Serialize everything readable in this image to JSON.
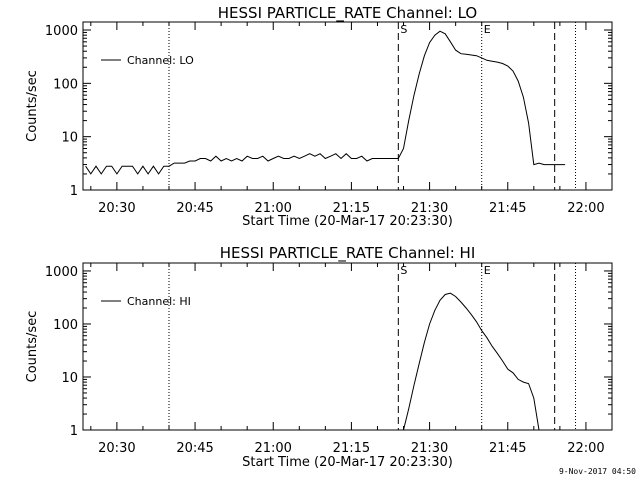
{
  "timestamp": "9-Nov-2017 04:50",
  "chart_data": [
    {
      "type": "line",
      "title": "HESSI PARTICLE_RATE Channel: LO",
      "xlabel": "Start Time (20-Mar-17 20:23:30)",
      "ylabel": "Counts/sec",
      "yscale": "log",
      "ylim": [
        1,
        1000
      ],
      "xlim": [
        "20:23:30",
        "22:05:00"
      ],
      "x_ticks": [
        "20:30",
        "20:45",
        "21:00",
        "21:15",
        "21:30",
        "21:45",
        "22:00"
      ],
      "y_ticks": [
        "1",
        "10",
        "100",
        "1000"
      ],
      "legend": {
        "label": "Channel: LO",
        "placement": "top-left"
      },
      "markers": [
        {
          "time": "21:24",
          "label": "S",
          "style": "dashed"
        },
        {
          "time": "21:40",
          "label": "E",
          "style": "dotted"
        }
      ],
      "vlines": [
        {
          "time": "20:40",
          "style": "dotted"
        },
        {
          "time": "21:54",
          "style": "dashed"
        },
        {
          "time": "21:58",
          "style": "dotted"
        }
      ],
      "series": [
        {
          "name": "Channel: LO",
          "x": [
            "20:24",
            "20:25",
            "20:26",
            "20:27",
            "20:28",
            "20:29",
            "20:30",
            "20:31",
            "20:32",
            "20:33",
            "20:34",
            "20:35",
            "20:36",
            "20:37",
            "20:38",
            "20:39",
            "20:40",
            "20:41",
            "20:42",
            "20:43",
            "20:44",
            "20:45",
            "20:46",
            "20:47",
            "20:48",
            "20:49",
            "20:50",
            "20:51",
            "20:52",
            "20:53",
            "20:54",
            "20:55",
            "20:56",
            "20:57",
            "20:58",
            "20:59",
            "21:00",
            "21:01",
            "21:02",
            "21:03",
            "21:04",
            "21:05",
            "21:06",
            "21:07",
            "21:08",
            "21:09",
            "21:10",
            "21:11",
            "21:12",
            "21:13",
            "21:14",
            "21:15",
            "21:16",
            "21:17",
            "21:18",
            "21:19",
            "21:20",
            "21:21",
            "21:22",
            "21:23",
            "21:24",
            "21:25",
            "21:26",
            "21:27",
            "21:28",
            "21:29",
            "21:30",
            "21:31",
            "21:32",
            "21:33",
            "21:34",
            "21:35",
            "21:36",
            "21:37",
            "21:38",
            "21:39",
            "21:40",
            "21:41",
            "21:42",
            "21:43",
            "21:44",
            "21:45",
            "21:46",
            "21:47",
            "21:48",
            "21:49",
            "21:50",
            "21:51",
            "21:52",
            "21:53",
            "21:54",
            "21:55",
            "21:56"
          ],
          "values": [
            2.8,
            2,
            2.8,
            2,
            2.8,
            2.8,
            2,
            2.8,
            2.8,
            2.8,
            2,
            2.8,
            2,
            2.8,
            2,
            2.8,
            2.8,
            3.2,
            3.2,
            3.2,
            3.5,
            3.5,
            3.9,
            3.9,
            3.5,
            4.3,
            3.5,
            3.9,
            3.5,
            3.9,
            3.5,
            4.3,
            3.9,
            3.9,
            4.3,
            3.5,
            3.9,
            4.3,
            3.9,
            3.9,
            4.3,
            3.9,
            4.3,
            4.8,
            4.3,
            4.8,
            3.9,
            4.3,
            4.8,
            3.9,
            4.8,
            3.9,
            3.9,
            4.3,
            3.5,
            3.9,
            3.9,
            3.9,
            3.9,
            3.9,
            3.9,
            6,
            20,
            60,
            150,
            330,
            580,
            800,
            950,
            850,
            600,
            420,
            360,
            350,
            340,
            330,
            300,
            270,
            260,
            250,
            235,
            210,
            170,
            110,
            55,
            18,
            3,
            3.2,
            3,
            3,
            3,
            3,
            3
          ]
        }
      ]
    },
    {
      "type": "line",
      "title": "HESSI PARTICLE_RATE Channel: HI",
      "xlabel": "Start Time (20-Mar-17 20:23:30)",
      "ylabel": "Counts/sec",
      "yscale": "log",
      "ylim": [
        1,
        1000
      ],
      "xlim": [
        "20:23:30",
        "22:05:00"
      ],
      "x_ticks": [
        "20:30",
        "20:45",
        "21:00",
        "21:15",
        "21:30",
        "21:45",
        "22:00"
      ],
      "y_ticks": [
        "1",
        "10",
        "100",
        "1000"
      ],
      "legend": {
        "label": "Channel: HI",
        "placement": "top-left"
      },
      "markers": [
        {
          "time": "21:24",
          "label": "S",
          "style": "dashed"
        },
        {
          "time": "21:40",
          "label": "E",
          "style": "dotted"
        }
      ],
      "vlines": [
        {
          "time": "20:40",
          "style": "dotted"
        },
        {
          "time": "21:54",
          "style": "dashed"
        },
        {
          "time": "21:58",
          "style": "dotted"
        }
      ],
      "series": [
        {
          "name": "Channel: HI",
          "x": [
            "21:25",
            "21:26",
            "21:27",
            "21:28",
            "21:29",
            "21:30",
            "21:31",
            "21:32",
            "21:33",
            "21:34",
            "21:35",
            "21:36",
            "21:37",
            "21:38",
            "21:39",
            "21:40",
            "21:41",
            "21:42",
            "21:43",
            "21:44",
            "21:45",
            "21:46",
            "21:47",
            "21:48",
            "21:49",
            "21:50",
            "21:51"
          ],
          "values": [
            1,
            2.5,
            7,
            18,
            45,
            100,
            180,
            280,
            360,
            380,
            330,
            260,
            200,
            150,
            110,
            75,
            55,
            38,
            28,
            20,
            14,
            12,
            9,
            8,
            7.5,
            4,
            1
          ]
        }
      ]
    }
  ]
}
